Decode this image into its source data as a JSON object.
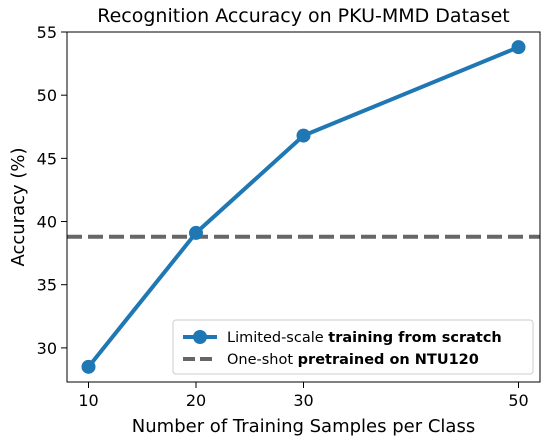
{
  "chart_data": {
    "type": "line",
    "title": "Recognition Accuracy on PKU-MMD Dataset",
    "xlabel": "Number of Training Samples per Class",
    "ylabel": "Accuracy (%)",
    "xlim": [
      8,
      52
    ],
    "ylim": [
      27.3,
      55
    ],
    "xticks": [
      10,
      20,
      30,
      50
    ],
    "yticks": [
      30,
      35,
      40,
      45,
      50,
      55
    ],
    "grid": false,
    "legend_position": "lower-right",
    "series": [
      {
        "name_prefix": "Limited-scale ",
        "name_bold": "training from scratch",
        "color": "#1f77b4",
        "style": "solid-with-circle-markers",
        "x": [
          10,
          20,
          30,
          50
        ],
        "y": [
          28.5,
          39.1,
          46.8,
          53.8
        ]
      }
    ],
    "reference_line": {
      "name_prefix": "One-shot ",
      "name_bold": "pretrained on NTU120",
      "color": "#666666",
      "style": "dashed",
      "y": 38.8
    }
  }
}
